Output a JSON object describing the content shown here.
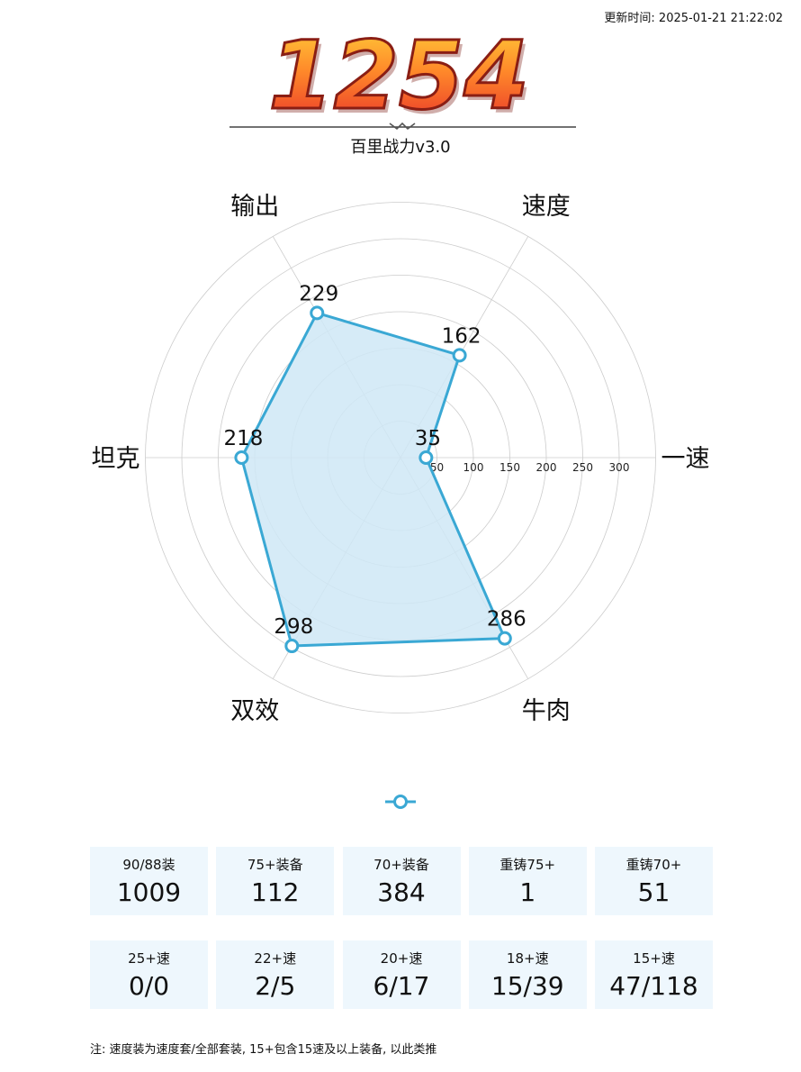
{
  "header": {
    "timestamp": "更新时间: 2025-01-21 21:22:02",
    "score": "1254",
    "subtitle": "百里战力v3.0"
  },
  "colors": {
    "accent": "#3aa8d4",
    "fill": "#cfe8f6",
    "grid": "#cccccc",
    "card_bg": "#eef7fd",
    "score_top": "#ffd23a",
    "score_bottom": "#e8302a"
  },
  "chart_data": {
    "type": "radar",
    "axes": [
      "一速",
      "速度",
      "输出",
      "坦克",
      "双效",
      "牛肉"
    ],
    "values": [
      35,
      162,
      229,
      218,
      298,
      286
    ],
    "r_ticks": [
      "50",
      "100",
      "150",
      "200",
      "250",
      "300"
    ],
    "r_max": 350,
    "grid": true
  },
  "stats": {
    "row1": [
      {
        "label": "90/88装",
        "value": "1009"
      },
      {
        "label": "75+装备",
        "value": "112"
      },
      {
        "label": "70+装备",
        "value": "384"
      },
      {
        "label": "重铸75+",
        "value": "1"
      },
      {
        "label": "重铸70+",
        "value": "51"
      }
    ],
    "row2": [
      {
        "label": "25+速",
        "value": "0/0"
      },
      {
        "label": "22+速",
        "value": "2/5"
      },
      {
        "label": "20+速",
        "value": "6/17"
      },
      {
        "label": "18+速",
        "value": "15/39"
      },
      {
        "label": "15+速",
        "value": "47/118"
      }
    ]
  },
  "footnote": "注: 速度装为速度套/全部套装, 15+包含15速及以上装备, 以此类推"
}
